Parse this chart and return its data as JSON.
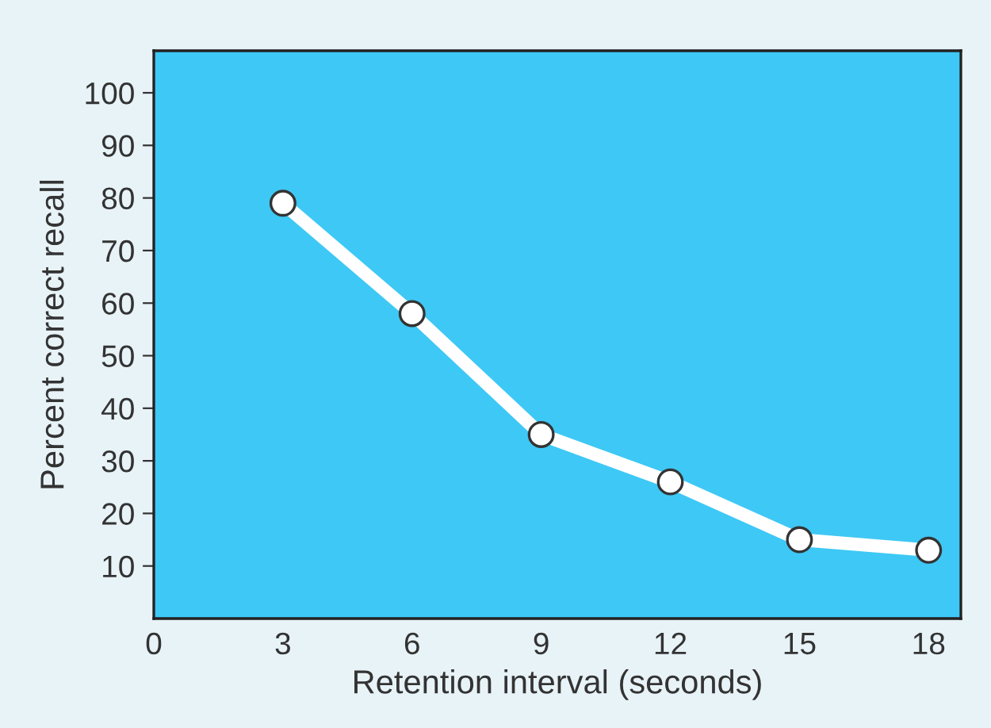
{
  "chart_data": {
    "type": "line",
    "xlabel": "Retention interval (seconds)",
    "ylabel": "Percent correct recall",
    "x": [
      3,
      6,
      9,
      12,
      15,
      18
    ],
    "series": [
      {
        "color": "#ffffff",
        "values": [
          79,
          58,
          35,
          26,
          15,
          13
        ]
      }
    ],
    "xlim": [
      0,
      18.75
    ],
    "ylim": [
      0,
      108
    ],
    "xticks": [
      0,
      3,
      6,
      9,
      12,
      15,
      18
    ],
    "yticks": [
      10,
      20,
      30,
      40,
      50,
      60,
      70,
      80,
      90,
      100
    ],
    "grid": false,
    "legend": false,
    "marker": "circle",
    "line_style": "solid"
  }
}
